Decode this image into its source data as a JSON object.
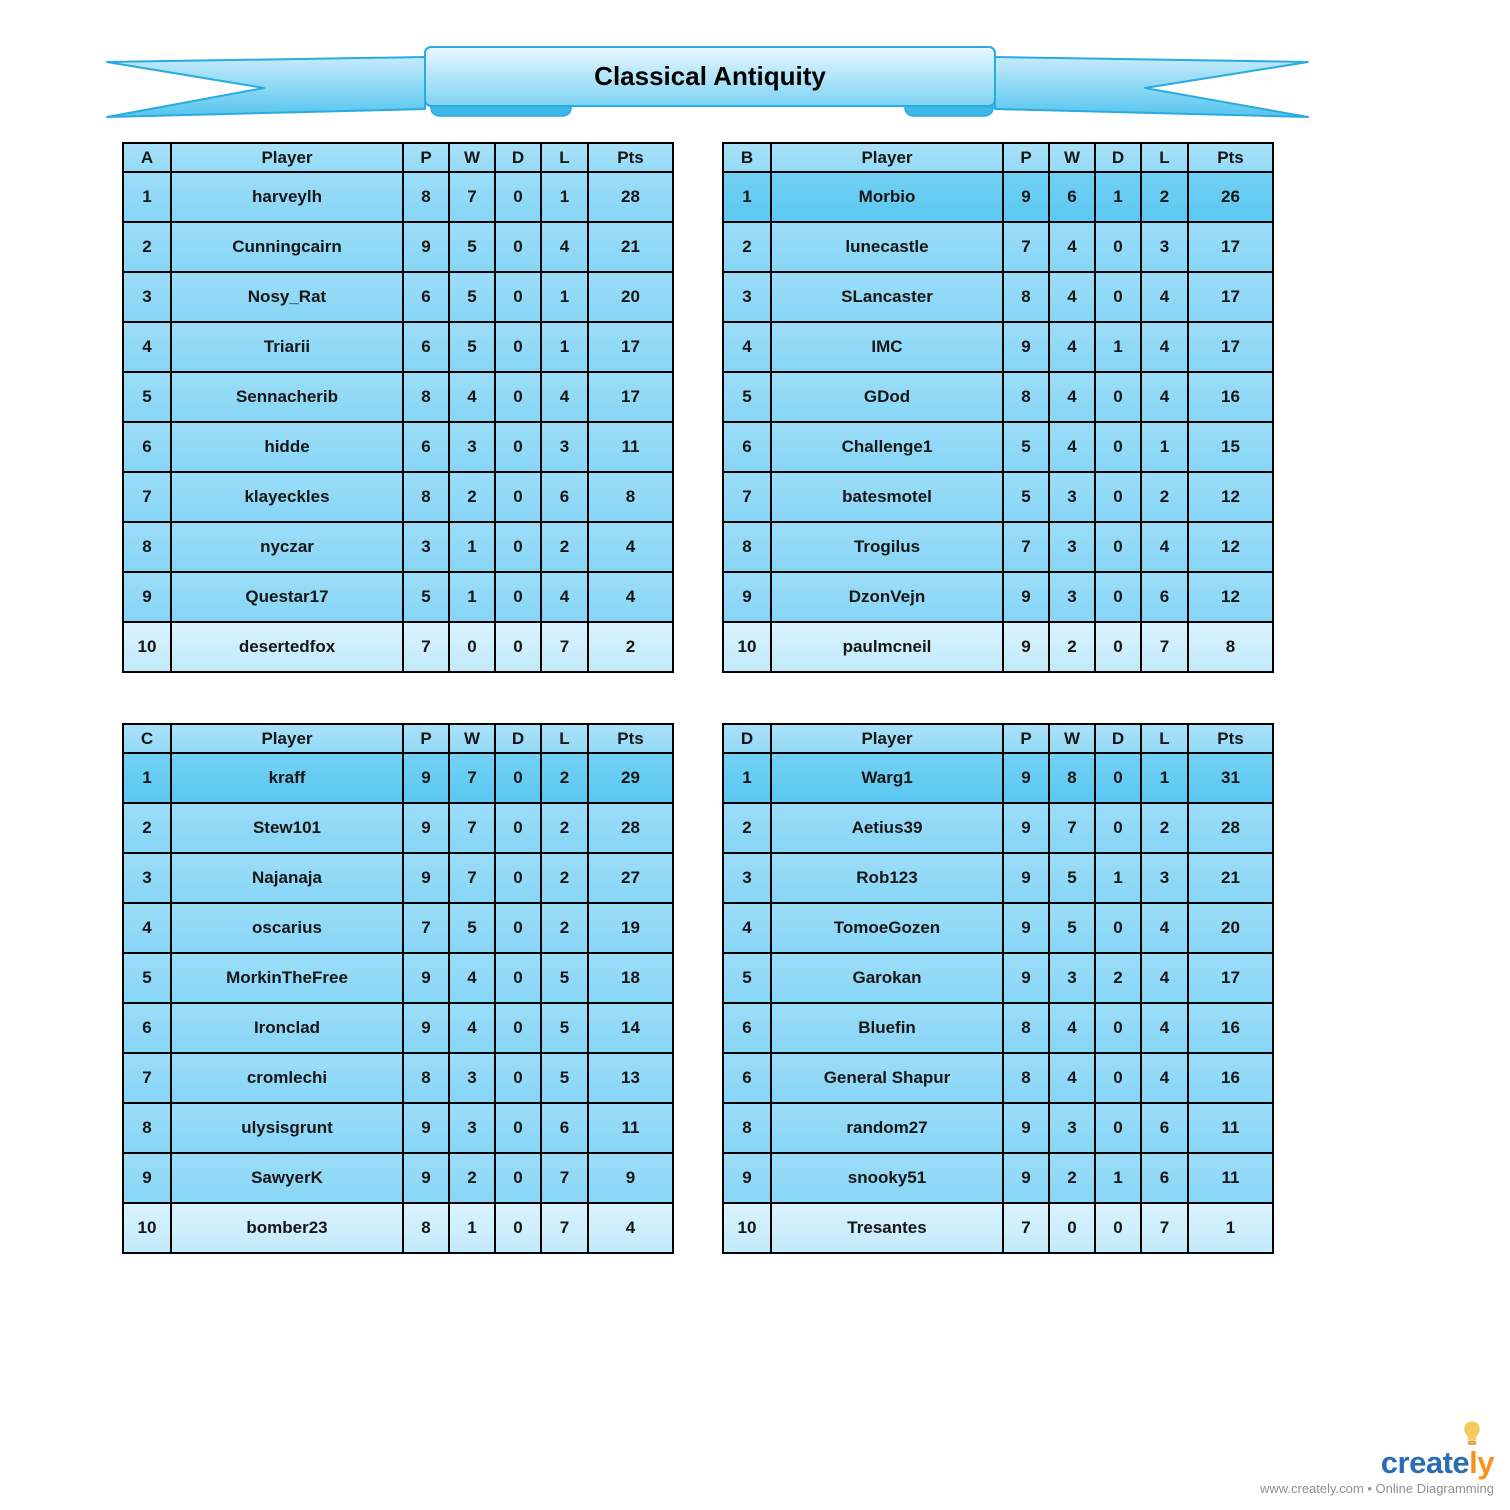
{
  "banner": {
    "title": "Classical Antiquity"
  },
  "columns": [
    "Player",
    "P",
    "W",
    "D",
    "L",
    "Pts"
  ],
  "tables": [
    {
      "group": "A",
      "leader_highlight": false,
      "rows": [
        [
          "1",
          "harveylh",
          "8",
          "7",
          "0",
          "1",
          "28"
        ],
        [
          "2",
          "Cunningcairn",
          "9",
          "5",
          "0",
          "4",
          "21"
        ],
        [
          "3",
          "Nosy_Rat",
          "6",
          "5",
          "0",
          "1",
          "20"
        ],
        [
          "4",
          "Triarii",
          "6",
          "5",
          "0",
          "1",
          "17"
        ],
        [
          "5",
          "Sennacherib",
          "8",
          "4",
          "0",
          "4",
          "17"
        ],
        [
          "6",
          "hidde",
          "6",
          "3",
          "0",
          "3",
          "11"
        ],
        [
          "7",
          "klayeckles",
          "8",
          "2",
          "0",
          "6",
          "8"
        ],
        [
          "8",
          "nyczar",
          "3",
          "1",
          "0",
          "2",
          "4"
        ],
        [
          "9",
          "Questar17",
          "5",
          "1",
          "0",
          "4",
          "4"
        ],
        [
          "10",
          "desertedfox",
          "7",
          "0",
          "0",
          "7",
          "2"
        ]
      ]
    },
    {
      "group": "B",
      "leader_highlight": true,
      "rows": [
        [
          "1",
          "Morbio",
          "9",
          "6",
          "1",
          "2",
          "26"
        ],
        [
          "2",
          "lunecastle",
          "7",
          "4",
          "0",
          "3",
          "17"
        ],
        [
          "3",
          "SLancaster",
          "8",
          "4",
          "0",
          "4",
          "17"
        ],
        [
          "4",
          "IMC",
          "9",
          "4",
          "1",
          "4",
          "17"
        ],
        [
          "5",
          "GDod",
          "8",
          "4",
          "0",
          "4",
          "16"
        ],
        [
          "6",
          "Challenge1",
          "5",
          "4",
          "0",
          "1",
          "15"
        ],
        [
          "7",
          "batesmotel",
          "5",
          "3",
          "0",
          "2",
          "12"
        ],
        [
          "8",
          "Trogilus",
          "7",
          "3",
          "0",
          "4",
          "12"
        ],
        [
          "9",
          "DzonVejn",
          "9",
          "3",
          "0",
          "6",
          "12"
        ],
        [
          "10",
          "paulmcneil",
          "9",
          "2",
          "0",
          "7",
          "8"
        ]
      ]
    },
    {
      "group": "C",
      "leader_highlight": true,
      "rows": [
        [
          "1",
          "kraff",
          "9",
          "7",
          "0",
          "2",
          "29"
        ],
        [
          "2",
          "Stew101",
          "9",
          "7",
          "0",
          "2",
          "28"
        ],
        [
          "3",
          "Najanaja",
          "9",
          "7",
          "0",
          "2",
          "27"
        ],
        [
          "4",
          "oscarius",
          "7",
          "5",
          "0",
          "2",
          "19"
        ],
        [
          "5",
          "MorkinTheFree",
          "9",
          "4",
          "0",
          "5",
          "18"
        ],
        [
          "6",
          "Ironclad",
          "9",
          "4",
          "0",
          "5",
          "14"
        ],
        [
          "7",
          "cromlechi",
          "8",
          "3",
          "0",
          "5",
          "13"
        ],
        [
          "8",
          "ulysisgrunt",
          "9",
          "3",
          "0",
          "6",
          "11"
        ],
        [
          "9",
          "SawyerK",
          "9",
          "2",
          "0",
          "7",
          "9"
        ],
        [
          "10",
          "bomber23",
          "8",
          "1",
          "0",
          "7",
          "4"
        ]
      ]
    },
    {
      "group": "D",
      "leader_highlight": true,
      "rows": [
        [
          "1",
          "Warg1",
          "9",
          "8",
          "0",
          "1",
          "31"
        ],
        [
          "2",
          "Aetius39",
          "9",
          "7",
          "0",
          "2",
          "28"
        ],
        [
          "3",
          "Rob123",
          "9",
          "5",
          "1",
          "3",
          "21"
        ],
        [
          "4",
          "TomoeGozen",
          "9",
          "5",
          "0",
          "4",
          "20"
        ],
        [
          "5",
          "Garokan",
          "9",
          "3",
          "2",
          "4",
          "17"
        ],
        [
          "6",
          "Bluefin",
          "8",
          "4",
          "0",
          "4",
          "16"
        ],
        [
          "6",
          "General Shapur",
          "8",
          "4",
          "0",
          "4",
          "16"
        ],
        [
          "8",
          "random27",
          "9",
          "3",
          "0",
          "6",
          "11"
        ],
        [
          "9",
          "snooky51",
          "9",
          "2",
          "1",
          "6",
          "11"
        ],
        [
          "10",
          "Tresantes",
          "7",
          "0",
          "0",
          "7",
          "1"
        ]
      ]
    }
  ],
  "footer": {
    "brand_create": "create",
    "brand_ly": "ly",
    "tagline": "www.creately.com • Online Diagramming"
  },
  "colors": {
    "accent_cyan": "#00aeef",
    "header_blue": "#9adbf8",
    "row_blue": "#8fd7f7",
    "leader_row_blue": "#63cbf2",
    "last_row_blue": "#cdecfb",
    "ribbon_border": "#29abe2",
    "border_black": "#000000",
    "brand_blue": "#2a6db5",
    "brand_orange": "#f6921e",
    "bulb_yellow": "#f7ca5f"
  }
}
